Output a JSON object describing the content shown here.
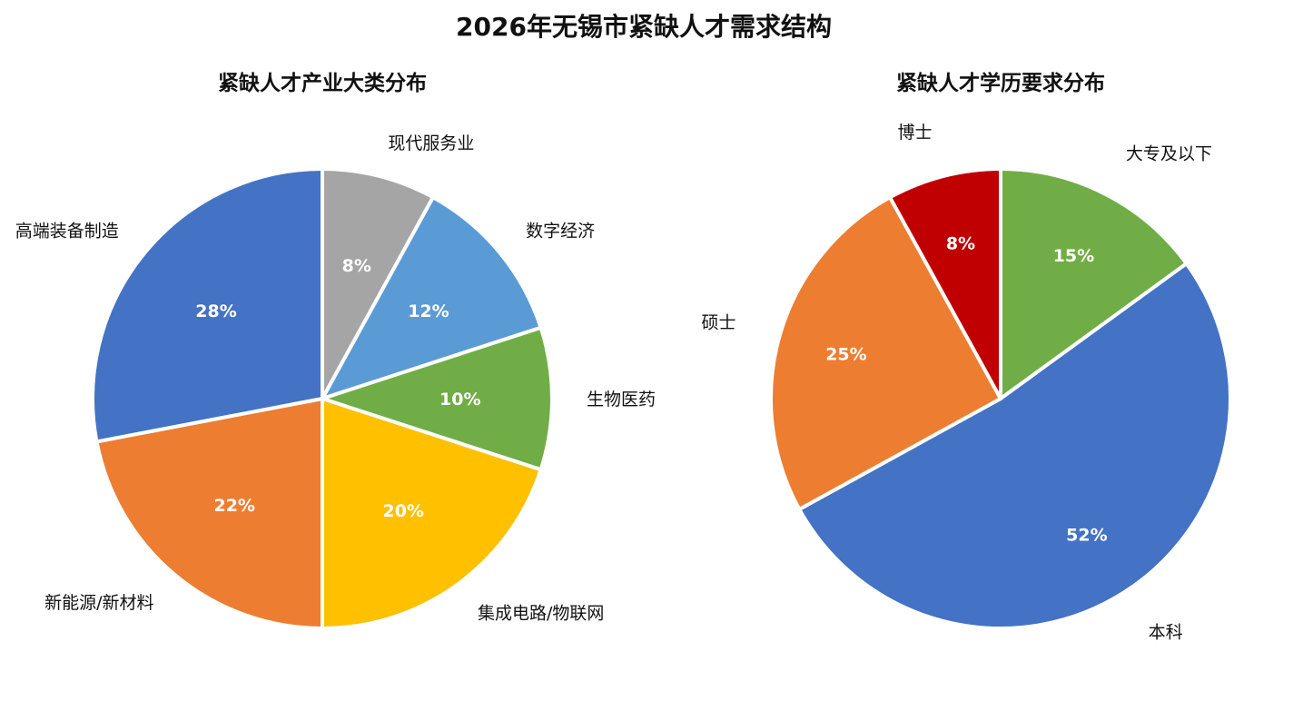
{
  "title": "2026年无锡市紧缺人才需求结构",
  "chart_data": [
    {
      "type": "pie",
      "title": "紧缺人才产业大类分布",
      "categories": [
        "现代服务业",
        "数字经济",
        "生物医药",
        "集成电路/物联网",
        "新能源/新材料",
        "高端装备制造"
      ],
      "values": [
        8,
        12,
        10,
        20,
        22,
        28
      ],
      "labels": [
        "8%",
        "12%",
        "10%",
        "20%",
        "22%",
        "28%"
      ],
      "colors": [
        "#a5a5a5",
        "#5b9bd5",
        "#70ad47",
        "#ffc000",
        "#ed7d31",
        "#4472c4"
      ]
    },
    {
      "type": "pie",
      "title": "紧缺人才学历要求分布",
      "categories": [
        "大专及以下",
        "本科",
        "硕士",
        "博士"
      ],
      "values": [
        15,
        52,
        25,
        8
      ],
      "labels": [
        "15%",
        "52%",
        "25%",
        "8%"
      ],
      "colors": [
        "#70ad47",
        "#4472c4",
        "#ed7d31",
        "#c00000"
      ]
    }
  ]
}
